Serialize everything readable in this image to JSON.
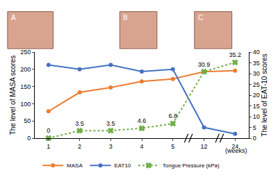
{
  "chart_data": {
    "type": "line",
    "categories": [
      "1",
      "2",
      "3",
      "4",
      "5",
      "12",
      "24"
    ],
    "x_label": "(weeks)",
    "y_label": "The level of MASA scores",
    "y2_label": "The level of EAT-10 scores",
    "ylim": [
      0,
      250
    ],
    "yticks": [
      0,
      50,
      100,
      150,
      200,
      250
    ],
    "y2lim": [
      0,
      40
    ],
    "y2ticks": [
      0,
      5,
      10,
      15,
      20,
      25,
      30,
      35,
      40
    ],
    "grid": false,
    "legend": "bottom",
    "annotations": [
      "A",
      "B",
      "C"
    ],
    "series": [
      {
        "name": "MASA",
        "color": "#ED7D31",
        "marker": "circle",
        "line_style": "solid",
        "values": [
          78,
          133,
          147,
          165,
          172,
          193,
          196
        ]
      },
      {
        "name": "EAT10",
        "color": "#4472C4",
        "marker": "circle",
        "line_style": "solid",
        "axis": "y2",
        "values": [
          34,
          32,
          34,
          31,
          32,
          5,
          2
        ]
      },
      {
        "name": "Tongue Pressure (kPa)",
        "color": "#70AD47",
        "marker": "x",
        "line_style": "dot",
        "axis": "y2",
        "data_labels": true,
        "values": [
          0,
          3.5,
          3.5,
          4.6,
          6.8,
          30.9,
          35.2
        ]
      }
    ]
  }
}
